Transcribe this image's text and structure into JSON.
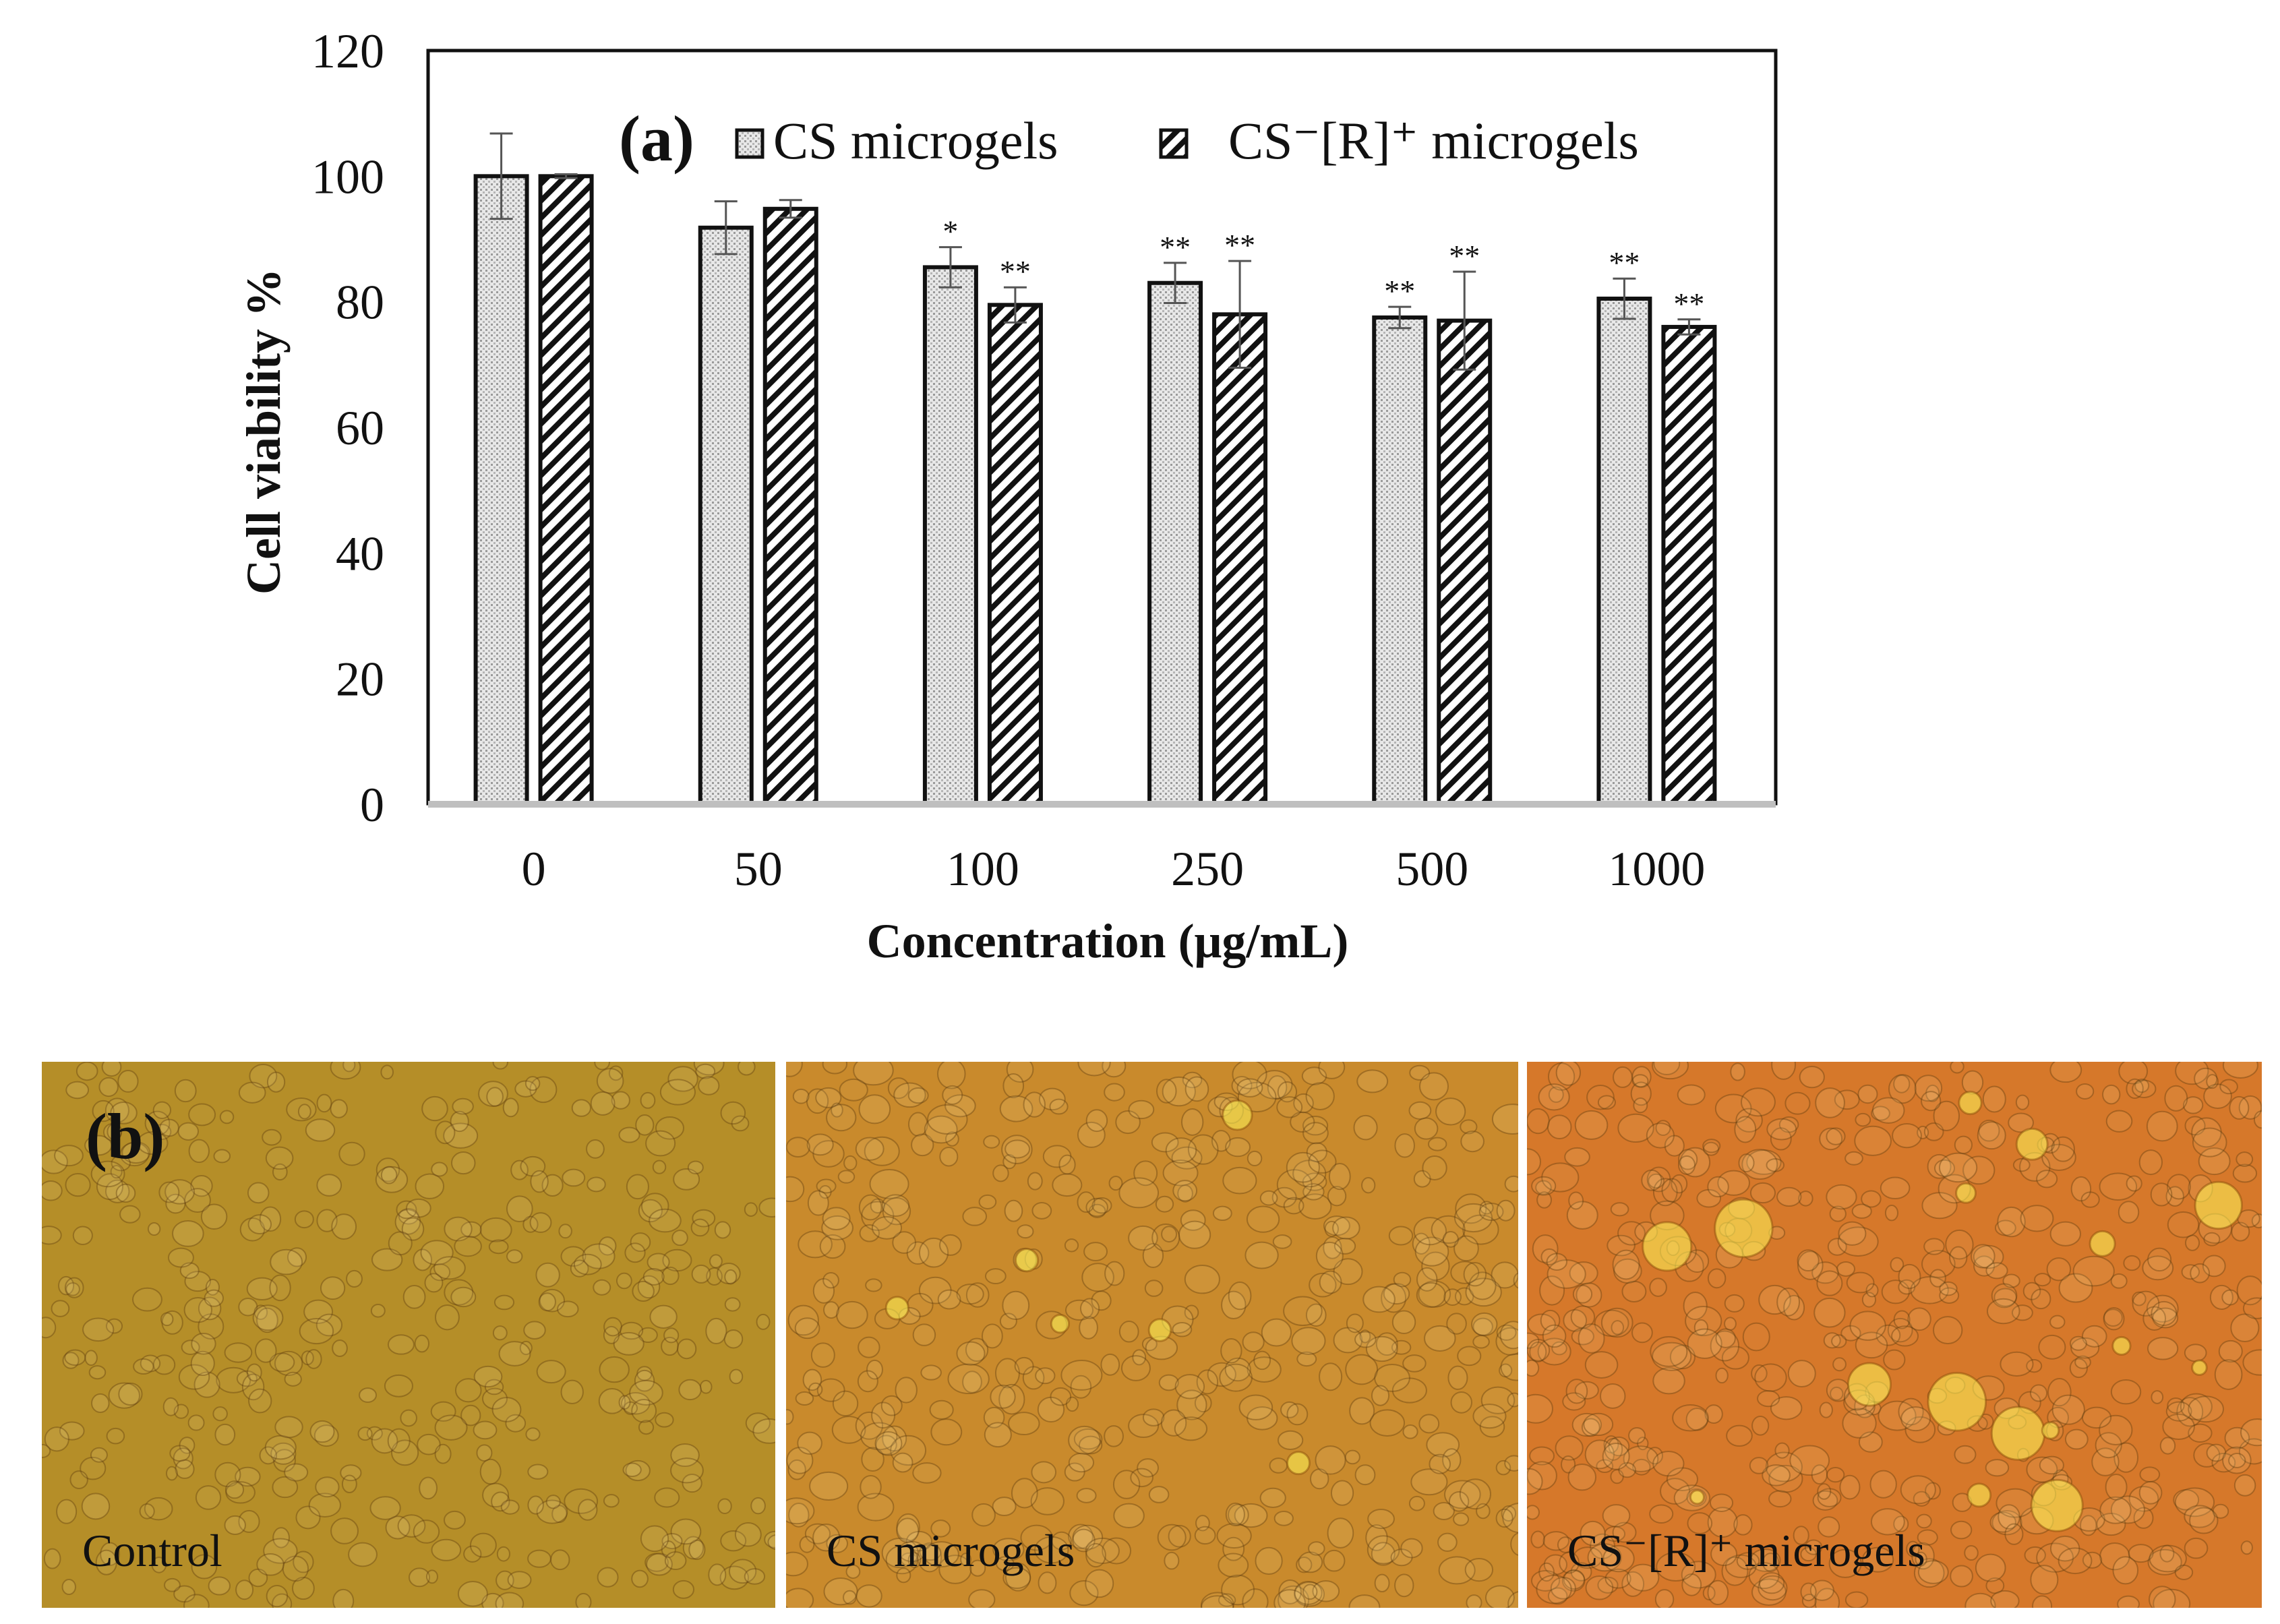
{
  "chart_data": {
    "type": "bar",
    "panel_label": "(a)",
    "title": "",
    "xlabel": "Concentration (μg/mL)",
    "ylabel": "Cell viability %",
    "ylim": [
      0,
      120
    ],
    "yticks": [
      "0",
      "20",
      "40",
      "60",
      "80",
      "100",
      "120"
    ],
    "categories": [
      "0",
      "50",
      "100",
      "250",
      "500",
      "1000"
    ],
    "series": [
      {
        "name": "CS microgels",
        "pattern": "dotted",
        "values": [
          100,
          91.8,
          85.5,
          83,
          77.5,
          80.5
        ],
        "errors": [
          6.8,
          4.2,
          3.2,
          3.2,
          1.7,
          3.2
        ],
        "significance": [
          "",
          "",
          "*",
          "**",
          "**",
          "**"
        ]
      },
      {
        "name": "CS⁻[R]⁺ microgels",
        "pattern": "hatched",
        "values": [
          100,
          94.8,
          79.5,
          78,
          77,
          76
        ],
        "errors": [
          0.3,
          1.4,
          2.8,
          8.5,
          7.8,
          1.2
        ],
        "significance": [
          "",
          "",
          "**",
          "**",
          "**",
          "**"
        ]
      }
    ],
    "legend_position": "top-center"
  },
  "panel_b": {
    "label": "(b)",
    "images": [
      {
        "caption": "Control",
        "color": "#b58e28"
      },
      {
        "caption": "CS microgels",
        "color": "#c98a2c"
      },
      {
        "caption": "CS⁻[R]⁺ microgels",
        "color": "#d6782a"
      }
    ]
  }
}
